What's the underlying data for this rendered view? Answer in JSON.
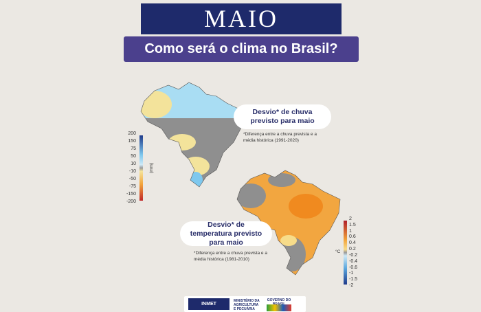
{
  "header": {
    "title": "MAIO",
    "subtitle": "Como será o clima no Brasil?"
  },
  "rain_map": {
    "label": "Desvio* de chuva previsto para maio",
    "note": "*Diferença entre a chuva prevista e a média histórica (1991-2020)",
    "legend": [
      200,
      150,
      75,
      50,
      10,
      -10,
      -50,
      -75,
      -150,
      -200
    ],
    "unit": "(mm)"
  },
  "temp_map": {
    "label": "Desvio* de temperatura previsto para maio",
    "note": "*Diferença entre a chuva prevista e a média histórica (1981-2010)",
    "legend": [
      2,
      1.5,
      1,
      0.6,
      0.4,
      0.2,
      -0.2,
      -0.4,
      -0.6,
      -1,
      -1.5,
      -2
    ],
    "unit": "°C"
  },
  "footer": {
    "inmet": "INMET",
    "ministry": "MINISTÉRIO DA AGRICULTURA E PECUÁRIA",
    "government": "GOVERNO DO BRASIL"
  }
}
